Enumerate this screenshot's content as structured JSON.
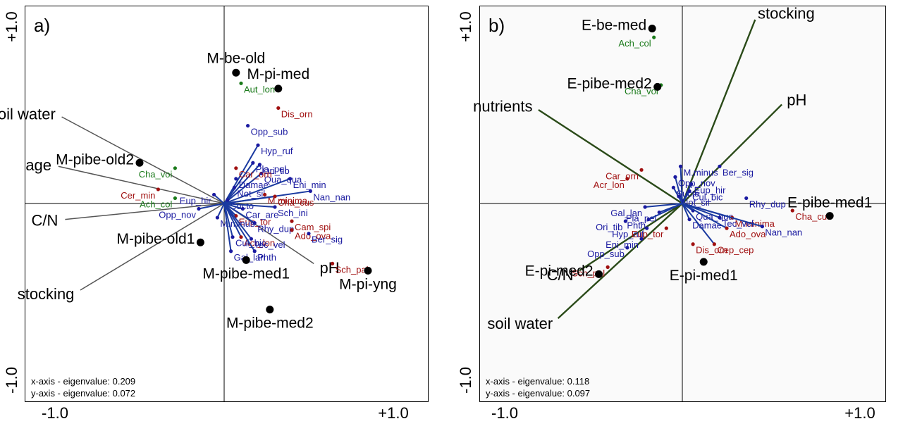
{
  "chart_data": [
    {
      "type": "scatter",
      "subtype": "ordination-biplot",
      "panel_label": "a)",
      "xlim": [
        -1.0,
        1.0
      ],
      "ylim": [
        -1.0,
        1.0
      ],
      "x_ticks": [
        "-1.0",
        "+1.0"
      ],
      "y_ticks": [
        "-1.0",
        "+1.0"
      ],
      "grid": false,
      "eigen_text": [
        "x-axis - eigenvalue: 0.209",
        "y-axis - eigenvalue: 0.072"
      ],
      "colors": {
        "env_arrow": "#555555",
        "species_blue": "#1a1aa0",
        "species_red": "#a01010",
        "species_green": "#1a7a1a",
        "site": "#000000",
        "species_arrow": "#1a3aa0"
      },
      "env_vectors": [
        {
          "label": "soil water",
          "x": -0.96,
          "y": 0.49
        },
        {
          "label": "age",
          "x": -0.98,
          "y": 0.21
        },
        {
          "label": "C/N",
          "x": -0.94,
          "y": -0.09
        },
        {
          "label": "stocking",
          "x": -0.85,
          "y": -0.49
        },
        {
          "label": "pH",
          "x": 0.53,
          "y": -0.34
        }
      ],
      "sites": [
        {
          "label": "M-be-old",
          "x": 0.07,
          "y": 0.74
        },
        {
          "label": "M-pi-med",
          "x": 0.32,
          "y": 0.65
        },
        {
          "label": "M-pibe-old2",
          "x": -0.5,
          "y": 0.23
        },
        {
          "label": "M-pibe-old1",
          "x": -0.14,
          "y": -0.22
        },
        {
          "label": "M-pibe-med1",
          "x": 0.13,
          "y": -0.32
        },
        {
          "label": "M-pibe-med2",
          "x": 0.27,
          "y": -0.6
        },
        {
          "label": "M-pi-yng",
          "x": 0.85,
          "y": -0.38
        }
      ],
      "species": [
        {
          "label": "Aut_lon",
          "x": 0.1,
          "y": 0.68,
          "group": "green"
        },
        {
          "label": "Dis_orn",
          "x": 0.32,
          "y": 0.54,
          "group": "red"
        },
        {
          "label": "Opp_sub",
          "x": 0.14,
          "y": 0.44,
          "group": "blue"
        },
        {
          "label": "Hyp_ruf",
          "x": 0.2,
          "y": 0.33,
          "group": "blue",
          "arrow": true
        },
        {
          "label": "Pla_pel",
          "x": 0.17,
          "y": 0.23,
          "group": "blue",
          "arrow": true
        },
        {
          "label": "Ori_tib",
          "x": 0.21,
          "y": 0.22,
          "group": "blue",
          "arrow": true
        },
        {
          "label": "Qua_qua",
          "x": 0.22,
          "y": 0.17,
          "group": "blue",
          "arrow": true
        },
        {
          "label": "Car_orn",
          "x": 0.07,
          "y": 0.2,
          "group": "red"
        },
        {
          "label": "Damae",
          "x": 0.07,
          "y": 0.14,
          "group": "blue"
        },
        {
          "label": "Eni_min",
          "x": 0.39,
          "y": 0.14,
          "group": "blue",
          "arrow": true
        },
        {
          "label": "Not_sil",
          "x": 0.06,
          "y": 0.09,
          "group": "blue",
          "arrow": true
        },
        {
          "label": "M.minima",
          "x": 0.24,
          "y": 0.05,
          "group": "red"
        },
        {
          "label": "Nan_nan",
          "x": 0.51,
          "y": 0.07,
          "group": "blue",
          "arrow": true
        },
        {
          "label": "Cha_voi",
          "x": -0.29,
          "y": 0.2,
          "group": "green"
        },
        {
          "label": "Cer_min",
          "x": -0.39,
          "y": 0.08,
          "group": "red"
        },
        {
          "label": "Eup_hir",
          "x": -0.06,
          "y": 0.05,
          "group": "blue",
          "arrow": true
        },
        {
          "label": "Ach_col",
          "x": -0.29,
          "y": 0.03,
          "group": "green"
        },
        {
          "label": "Sucto",
          "x": 0.02,
          "y": 0.02,
          "group": "blue",
          "arrow": true
        },
        {
          "label": "Cha_cus",
          "x": 0.3,
          "y": 0.04,
          "group": "red",
          "arrow": true
        },
        {
          "label": "Sch_ini",
          "x": 0.3,
          "y": -0.02,
          "group": "blue",
          "arrow": true
        },
        {
          "label": "Opp_nov",
          "x": -0.15,
          "y": -0.03,
          "group": "blue",
          "arrow": true
        },
        {
          "label": "Car_are",
          "x": 0.11,
          "y": -0.03,
          "group": "blue",
          "arrow": true
        },
        {
          "label": "Eup_tor",
          "x": 0.07,
          "y": -0.07,
          "group": "red",
          "arrow": true
        },
        {
          "label": "M.minus",
          "x": -0.04,
          "y": -0.08,
          "group": "blue",
          "arrow": true
        },
        {
          "label": "Cam_spi",
          "x": 0.4,
          "y": -0.1,
          "group": "red"
        },
        {
          "label": "Rhy_dup",
          "x": 0.18,
          "y": -0.11,
          "group": "blue",
          "arrow": true
        },
        {
          "label": "Ado_ova",
          "x": 0.4,
          "y": -0.15,
          "group": "red"
        },
        {
          "label": "Acr_lon",
          "x": 0.1,
          "y": -0.19,
          "group": "red",
          "arrow": true
        },
        {
          "label": "Tec_vel",
          "x": 0.16,
          "y": -0.2,
          "group": "blue",
          "arrow": true
        },
        {
          "label": "Cul_bic",
          "x": 0.05,
          "y": -0.19,
          "group": "blue",
          "arrow": true
        },
        {
          "label": "Ber_sig",
          "x": 0.5,
          "y": -0.17,
          "group": "blue"
        },
        {
          "label": "Phth",
          "x": 0.18,
          "y": -0.27,
          "group": "blue",
          "arrow": true
        },
        {
          "label": "Gal_lan",
          "x": 0.04,
          "y": -0.27,
          "group": "blue",
          "arrow": true
        },
        {
          "label": "Sch_pal",
          "x": 0.64,
          "y": -0.34,
          "group": "red"
        }
      ]
    },
    {
      "type": "scatter",
      "subtype": "ordination-biplot",
      "panel_label": "b)",
      "xlim": [
        -1.0,
        1.0
      ],
      "ylim": [
        -1.0,
        1.0
      ],
      "x_ticks": [
        "-1.0",
        "+1.0"
      ],
      "y_ticks": [
        "-1.0",
        "+1.0"
      ],
      "grid": false,
      "eigen_text": [
        "x-axis - eigenvalue: 0.118",
        "y-axis - eigenvalue: 0.097"
      ],
      "colors": {
        "env_arrow": "#2a4a18",
        "species_blue": "#1a1aa0",
        "species_red": "#a01010",
        "species_green": "#1a7a1a",
        "site": "#000000",
        "species_arrow": "#1a3aa0"
      },
      "env_vectors": [
        {
          "label": "stocking",
          "x": 0.41,
          "y": 1.04
        },
        {
          "label": "nutrients",
          "x": -0.81,
          "y": 0.53
        },
        {
          "label": "pH",
          "x": 0.56,
          "y": 0.56
        },
        {
          "label": "C/N",
          "x": -0.58,
          "y": -0.38
        },
        {
          "label": "soil water",
          "x": -0.7,
          "y": -0.65
        }
      ],
      "sites": [
        {
          "label": "E-be-med",
          "x": -0.17,
          "y": 0.99
        },
        {
          "label": "E-pibe-med2",
          "x": -0.14,
          "y": 0.66
        },
        {
          "label": "E-pibe-med1",
          "x": 0.83,
          "y": -0.07
        },
        {
          "label": "E-pi-med1",
          "x": 0.12,
          "y": -0.33
        },
        {
          "label": "E-pi-med2",
          "x": -0.47,
          "y": -0.4
        }
      ],
      "species": [
        {
          "label": "Ach_col",
          "x": -0.16,
          "y": 0.94,
          "group": "green"
        },
        {
          "label": "Cha_voi",
          "x": -0.12,
          "y": 0.67,
          "group": "green"
        },
        {
          "label": "Ber_sig",
          "x": 0.21,
          "y": 0.21,
          "group": "blue"
        },
        {
          "label": "Car_orn",
          "x": -0.23,
          "y": 0.19,
          "group": "red"
        },
        {
          "label": "M.minus",
          "x": -0.01,
          "y": 0.21,
          "group": "blue",
          "arrow": true
        },
        {
          "label": "Acr_lon",
          "x": -0.31,
          "y": 0.14,
          "group": "red"
        },
        {
          "label": "Opp_nov",
          "x": -0.04,
          "y": 0.15,
          "group": "blue",
          "arrow": true
        },
        {
          "label": "Eup_hir",
          "x": 0.05,
          "y": 0.11,
          "group": "blue",
          "arrow": true
        },
        {
          "label": "Sucto",
          "x": -0.05,
          "y": 0.09,
          "group": "blue",
          "arrow": true
        },
        {
          "label": "Cul_bic",
          "x": 0.04,
          "y": 0.07,
          "group": "blue",
          "arrow": true
        },
        {
          "label": "Rhy_dup",
          "x": 0.36,
          "y": 0.03,
          "group": "blue"
        },
        {
          "label": "Not_sil",
          "x": -0.02,
          "y": 0.04,
          "group": "blue",
          "arrow": true
        },
        {
          "label": "Cha_cus",
          "x": 0.62,
          "y": -0.04,
          "group": "red"
        },
        {
          "label": "Gal_lan",
          "x": -0.21,
          "y": -0.02,
          "group": "blue",
          "arrow": true
        },
        {
          "label": "Pla_pel",
          "x": -0.13,
          "y": -0.05,
          "group": "blue",
          "arrow": true
        },
        {
          "label": "Qua_qua",
          "x": 0.06,
          "y": -0.04,
          "group": "blue",
          "arrow": true
        },
        {
          "label": "M.minima",
          "x": 0.28,
          "y": -0.08,
          "group": "red",
          "arrow": true
        },
        {
          "label": "Ori_tib",
          "x": -0.32,
          "y": -0.1,
          "group": "blue"
        },
        {
          "label": "Phth",
          "x": -0.19,
          "y": -0.09,
          "group": "blue",
          "arrow": true
        },
        {
          "label": "Damae",
          "x": 0.04,
          "y": -0.09,
          "group": "blue",
          "arrow": true
        },
        {
          "label": "Tec_vel",
          "x": 0.21,
          "y": -0.08,
          "group": "blue",
          "arrow": true
        },
        {
          "label": "Nan_nan",
          "x": 0.45,
          "y": -0.13,
          "group": "blue",
          "arrow": true
        },
        {
          "label": "Hyp_ruf",
          "x": -0.2,
          "y": -0.14,
          "group": "blue"
        },
        {
          "label": "Eup_tor",
          "x": -0.09,
          "y": -0.14,
          "group": "red"
        },
        {
          "label": "Ado_ova",
          "x": 0.25,
          "y": -0.14,
          "group": "red",
          "arrow": true
        },
        {
          "label": "Cep_cep",
          "x": 0.18,
          "y": -0.23,
          "group": "red",
          "arrow": true
        },
        {
          "label": "Eni_min",
          "x": -0.23,
          "y": -0.2,
          "group": "blue"
        },
        {
          "label": "Dis_orn",
          "x": 0.06,
          "y": -0.23,
          "group": "red"
        },
        {
          "label": "Opp_sub",
          "x": -0.31,
          "y": -0.25,
          "group": "blue"
        },
        {
          "label": "Sch_pal",
          "x": -0.42,
          "y": -0.36,
          "group": "red"
        }
      ]
    }
  ]
}
